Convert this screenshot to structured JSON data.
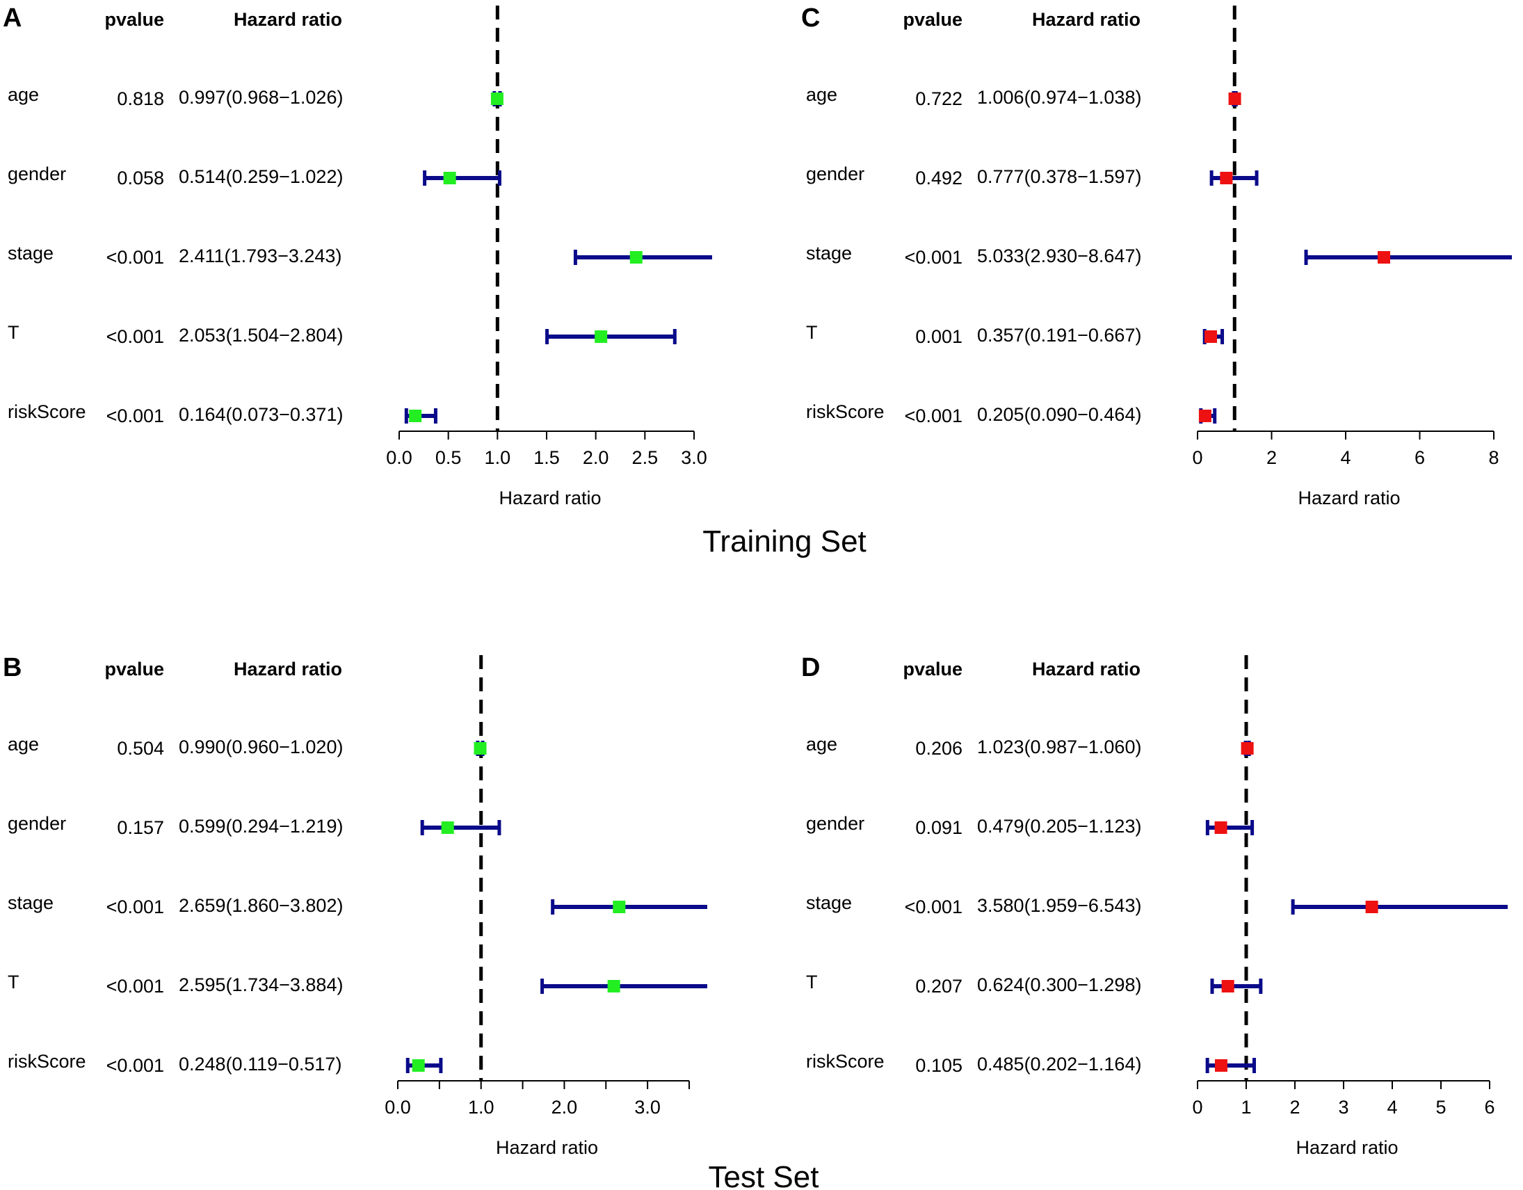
{
  "colors": {
    "ci_line": "#0a0a8a",
    "green_marker": "#22ee22",
    "red_marker": "#ee1111",
    "reference_line": "#000000"
  },
  "set_titles": {
    "training": "Training Set",
    "test": "Test Set"
  },
  "chart_data": [
    {
      "type": "forest",
      "panel": "A",
      "group": "Training Set",
      "marker": "green",
      "headers": {
        "pvalue": "pvalue",
        "hr": "Hazard ratio"
      },
      "xlabel": "Hazard ratio",
      "xlim": [
        0,
        3.0
      ],
      "ticks": [
        0.0,
        0.5,
        1.0,
        1.5,
        2.0,
        2.5,
        3.0
      ],
      "tick_labels": [
        "0.0",
        "0.5",
        "1.0",
        "1.5",
        "2.0",
        "2.5",
        "3.0"
      ],
      "reference": 1.0,
      "rows": [
        {
          "name": "age",
          "pvalue": "0.818",
          "hr_text": "0.997(0.968−1.026)",
          "hr": 0.997,
          "lo": 0.968,
          "hi": 1.026
        },
        {
          "name": "gender",
          "pvalue": "0.058",
          "hr_text": "0.514(0.259−1.022)",
          "hr": 0.514,
          "lo": 0.259,
          "hi": 1.022
        },
        {
          "name": "stage",
          "pvalue": "<0.001",
          "hr_text": "2.411(1.793−3.243)",
          "hr": 2.411,
          "lo": 1.793,
          "hi": 3.243
        },
        {
          "name": "T",
          "pvalue": "<0.001",
          "hr_text": "2.053(1.504−2.804)",
          "hr": 2.053,
          "lo": 1.504,
          "hi": 2.804
        },
        {
          "name": "riskScore",
          "pvalue": "<0.001",
          "hr_text": "0.164(0.073−0.371)",
          "hr": 0.164,
          "lo": 0.073,
          "hi": 0.371
        }
      ]
    },
    {
      "type": "forest",
      "panel": "C",
      "group": "Training Set",
      "marker": "red",
      "headers": {
        "pvalue": "pvalue",
        "hr": "Hazard ratio"
      },
      "xlabel": "Hazard ratio",
      "xlim": [
        0,
        8
      ],
      "ticks": [
        0,
        2,
        4,
        6,
        8
      ],
      "tick_labels": [
        "0",
        "2",
        "4",
        "6",
        "8"
      ],
      "reference": 1.0,
      "rows": [
        {
          "name": "age",
          "pvalue": "0.722",
          "hr_text": "1.006(0.974−1.038)",
          "hr": 1.006,
          "lo": 0.974,
          "hi": 1.038
        },
        {
          "name": "gender",
          "pvalue": "0.492",
          "hr_text": "0.777(0.378−1.597)",
          "hr": 0.777,
          "lo": 0.378,
          "hi": 1.597
        },
        {
          "name": "stage",
          "pvalue": "<0.001",
          "hr_text": "5.033(2.930−8.647)",
          "hr": 5.033,
          "lo": 2.93,
          "hi": 8.647
        },
        {
          "name": "T",
          "pvalue": "0.001",
          "hr_text": "0.357(0.191−0.667)",
          "hr": 0.357,
          "lo": 0.191,
          "hi": 0.667
        },
        {
          "name": "riskScore",
          "pvalue": "<0.001",
          "hr_text": "0.205(0.090−0.464)",
          "hr": 0.205,
          "lo": 0.09,
          "hi": 0.464
        }
      ]
    },
    {
      "type": "forest",
      "panel": "B",
      "group": "Test Set",
      "marker": "green",
      "headers": {
        "pvalue": "pvalue",
        "hr": "Hazard ratio"
      },
      "xlabel": "Hazard ratio",
      "xlim": [
        0,
        3.5
      ],
      "ticks": [
        0.0,
        0.5,
        1.0,
        1.5,
        2.0,
        2.5,
        3.0,
        3.5
      ],
      "tick_labels": [
        "0.0",
        "",
        "1.0",
        "",
        "2.0",
        "",
        "3.0",
        ""
      ],
      "reference": 1.0,
      "rows": [
        {
          "name": "age",
          "pvalue": "0.504",
          "hr_text": "0.990(0.960−1.020)",
          "hr": 0.99,
          "lo": 0.96,
          "hi": 1.02
        },
        {
          "name": "gender",
          "pvalue": "0.157",
          "hr_text": "0.599(0.294−1.219)",
          "hr": 0.599,
          "lo": 0.294,
          "hi": 1.219
        },
        {
          "name": "stage",
          "pvalue": "<0.001",
          "hr_text": "2.659(1.860−3.802)",
          "hr": 2.659,
          "lo": 1.86,
          "hi": 3.802
        },
        {
          "name": "T",
          "pvalue": "<0.001",
          "hr_text": "2.595(1.734−3.884)",
          "hr": 2.595,
          "lo": 1.734,
          "hi": 3.884
        },
        {
          "name": "riskScore",
          "pvalue": "<0.001",
          "hr_text": "0.248(0.119−0.517)",
          "hr": 0.248,
          "lo": 0.119,
          "hi": 0.517
        }
      ]
    },
    {
      "type": "forest",
      "panel": "D",
      "group": "Test Set",
      "marker": "red",
      "headers": {
        "pvalue": "pvalue",
        "hr": "Hazard ratio"
      },
      "xlabel": "Hazard ratio",
      "xlim": [
        0,
        6
      ],
      "ticks": [
        0,
        1,
        2,
        3,
        4,
        5,
        6
      ],
      "tick_labels": [
        "0",
        "1",
        "2",
        "3",
        "4",
        "5",
        "6"
      ],
      "reference": 1.0,
      "rows": [
        {
          "name": "age",
          "pvalue": "0.206",
          "hr_text": "1.023(0.987−1.060)",
          "hr": 1.023,
          "lo": 0.987,
          "hi": 1.06
        },
        {
          "name": "gender",
          "pvalue": "0.091",
          "hr_text": "0.479(0.205−1.123)",
          "hr": 0.479,
          "lo": 0.205,
          "hi": 1.123
        },
        {
          "name": "stage",
          "pvalue": "<0.001",
          "hr_text": "3.580(1.959−6.543)",
          "hr": 3.58,
          "lo": 1.959,
          "hi": 6.543
        },
        {
          "name": "T",
          "pvalue": "0.207",
          "hr_text": "0.624(0.300−1.298)",
          "hr": 0.624,
          "lo": 0.3,
          "hi": 1.298
        },
        {
          "name": "riskScore",
          "pvalue": "0.105",
          "hr_text": "0.485(0.202−1.164)",
          "hr": 0.485,
          "lo": 0.202,
          "hi": 1.164
        }
      ]
    }
  ]
}
